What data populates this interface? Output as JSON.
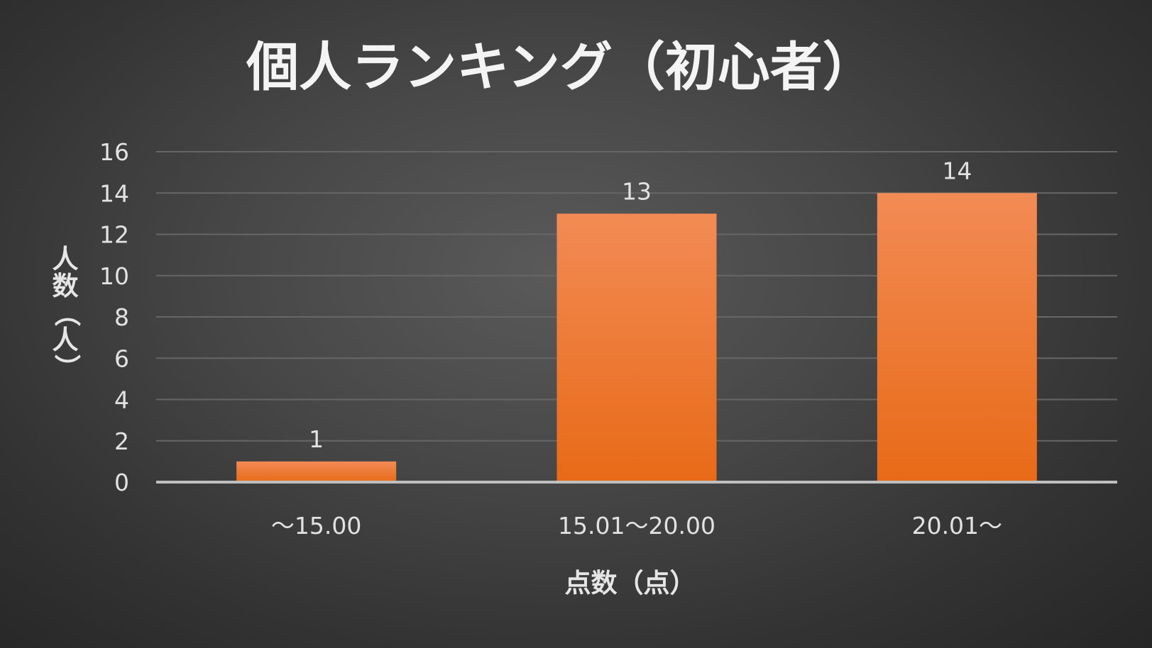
{
  "chart_data": {
    "type": "bar",
    "title": "個人ランキング（初心者）",
    "categories": [
      "〜15.00",
      "15.01〜20.00",
      "20.01〜"
    ],
    "series": [
      {
        "values": [
          1,
          13,
          14
        ]
      }
    ],
    "data_labels": [
      "1",
      "13",
      "14"
    ],
    "xlabel": "点数（点）",
    "ylabel": "人数（人）",
    "ylim": [
      0,
      16
    ],
    "yticks": [
      0,
      2,
      4,
      6,
      8,
      10,
      12,
      14,
      16
    ],
    "grid": true,
    "legend": "none",
    "colors": {
      "bar_top": "#f28b55",
      "bar_bottom": "#e86a17",
      "grid": "#666666",
      "axis": "#bfbfbf"
    }
  }
}
